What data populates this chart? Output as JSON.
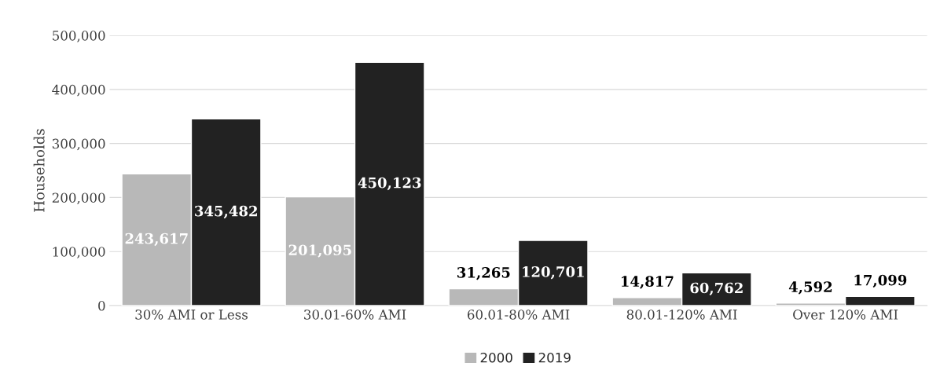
{
  "chart_data": {
    "type": "bar",
    "ylabel": "Households",
    "categories": [
      "30% AMI or Less",
      "30.01-60% AMI",
      "60.01-80% AMI",
      "80.01-120% AMI",
      "Over 120% AMI"
    ],
    "series": [
      {
        "name": "2000",
        "color": "#b8b8b8",
        "values": [
          243617,
          201095,
          31265,
          14817,
          4592
        ],
        "value_labels": [
          "243,617",
          "201,095",
          "31,265",
          "14,817",
          "4,592"
        ]
      },
      {
        "name": "2019",
        "color": "#222222",
        "values": [
          345482,
          450123,
          120701,
          60762,
          17099
        ],
        "value_labels": [
          "345,482",
          "450,123",
          "120,701",
          "60,762",
          "17,099"
        ]
      }
    ],
    "ylim": [
      0,
      500000
    ],
    "yticks": [
      {
        "value": 0,
        "label": "0"
      },
      {
        "value": 100000,
        "label": "100,000"
      },
      {
        "value": 200000,
        "label": "200,000"
      },
      {
        "value": 300000,
        "label": "300,000"
      },
      {
        "value": 400000,
        "label": "400,000"
      },
      {
        "value": 500000,
        "label": "500,000"
      }
    ],
    "grid": "y",
    "legend": "bottom"
  }
}
